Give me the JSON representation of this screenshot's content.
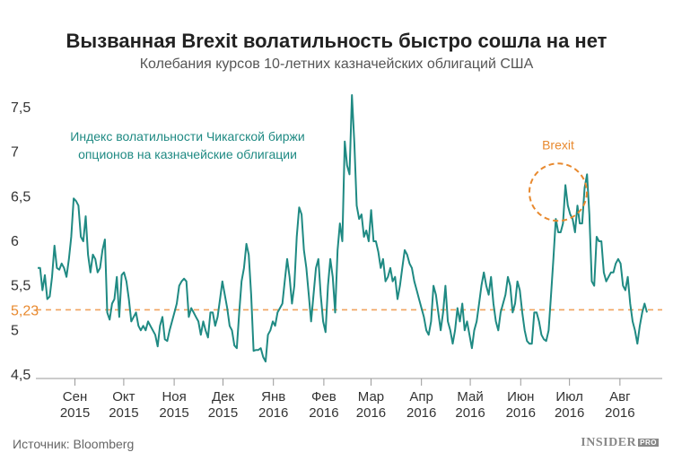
{
  "header": {
    "title": "Вызванная Brexit волатильность быстро сошла на нет",
    "subtitle": "Колебания курсов 10-летних казначейских облигаций США"
  },
  "footer": {
    "source": "Источник: Bloomberg",
    "brand": "INSIDER",
    "brand_suffix": "PRO"
  },
  "colors": {
    "line": "#1f8a83",
    "reference": "#f0a35e",
    "brexit": "#e8892e",
    "axis": "#999999",
    "text": "#333333"
  },
  "chart_data": {
    "type": "line",
    "title": "Вызванная Brexit волатильность быстро сошла на нет",
    "subtitle": "Колебания курсов 10-летних казначейских облигаций США",
    "series": [
      {
        "name": "Индекс волатильности Чикагской биржи опционов на казначейские облигации",
        "values": [
          5.7,
          5.7,
          5.45,
          5.62,
          5.35,
          5.38,
          5.6,
          5.95,
          5.7,
          5.68,
          5.75,
          5.7,
          5.6,
          5.8,
          6.05,
          6.48,
          6.45,
          6.4,
          6.05,
          6.0,
          6.28,
          5.85,
          5.65,
          5.85,
          5.8,
          5.65,
          5.7,
          5.9,
          6.02,
          5.2,
          5.12,
          5.3,
          5.35,
          5.6,
          5.15,
          5.62,
          5.65,
          5.55,
          5.35,
          5.1,
          5.15,
          5.2,
          5.05,
          5.0,
          5.05,
          5.0,
          5.1,
          5.05,
          5.0,
          4.95,
          4.82,
          5.05,
          5.15,
          4.9,
          4.88,
          5.0,
          5.1,
          5.2,
          5.3,
          5.5,
          5.55,
          5.58,
          5.55,
          5.15,
          5.25,
          5.2,
          5.15,
          5.1,
          4.95,
          5.1,
          5.0,
          4.92,
          5.2,
          5.2,
          5.05,
          5.15,
          5.35,
          5.55,
          5.4,
          5.25,
          5.05,
          5.0,
          4.83,
          4.8,
          5.2,
          5.55,
          5.7,
          5.97,
          5.85,
          5.4,
          4.77,
          4.78,
          4.78,
          4.8,
          4.7,
          4.65,
          4.95,
          5.0,
          5.1,
          5.05,
          5.2,
          5.25,
          5.3,
          5.55,
          5.8,
          5.6,
          5.3,
          5.5,
          6.05,
          6.38,
          6.3,
          5.9,
          5.7,
          5.4,
          5.1,
          5.4,
          5.7,
          5.8,
          5.4,
          5.1,
          4.98,
          5.5,
          5.8,
          5.6,
          5.2,
          5.9,
          6.2,
          6.0,
          7.12,
          6.85,
          6.75,
          7.64,
          7.1,
          6.4,
          6.25,
          6.3,
          6.05,
          6.12,
          6.0,
          6.35,
          6.0,
          6.0,
          5.88,
          5.7,
          5.8,
          5.55,
          5.6,
          5.7,
          5.55,
          5.6,
          5.35,
          5.5,
          5.7,
          5.9,
          5.85,
          5.75,
          5.7,
          5.55,
          5.45,
          5.35,
          5.25,
          5.15,
          5.0,
          4.95,
          5.1,
          5.5,
          5.4,
          5.2,
          5.0,
          5.2,
          5.5,
          5.1,
          5.0,
          4.85,
          5.0,
          5.25,
          5.1,
          5.3,
          5.0,
          5.1,
          4.95,
          4.8,
          5.0,
          5.1,
          5.3,
          5.5,
          5.65,
          5.5,
          5.4,
          5.6,
          5.3,
          5.1,
          5.0,
          5.2,
          5.3,
          5.4,
          5.6,
          5.5,
          5.2,
          5.3,
          5.55,
          5.45,
          5.2,
          5.0,
          4.88,
          4.85,
          4.85,
          5.2,
          5.2,
          5.1,
          4.95,
          4.9,
          4.88,
          5.0,
          5.4,
          5.8,
          6.25,
          6.1,
          6.1,
          6.2,
          6.63,
          6.4,
          6.3,
          6.25,
          6.1,
          6.4,
          6.2,
          6.2,
          6.6,
          6.75,
          6.3,
          5.55,
          5.5,
          6.05,
          6.0,
          6.0,
          5.65,
          5.55,
          5.6,
          5.65,
          5.65,
          5.75,
          5.8,
          5.75,
          5.5,
          5.45,
          5.6,
          5.3,
          5.1,
          5.0,
          4.85,
          5.05,
          5.2,
          5.3,
          5.2
        ]
      },
      {
        "name": "5,23",
        "type": "reference-line",
        "values": [
          5.23
        ]
      }
    ],
    "x": {
      "range": [
        "2015-08-08",
        "2016-08-27"
      ],
      "ticks": [
        {
          "month": "Сен",
          "year": "2015",
          "date": "2015-09-01"
        },
        {
          "month": "Окт",
          "year": "2015",
          "date": "2015-10-01"
        },
        {
          "month": "Ноя",
          "year": "2015",
          "date": "2015-11-01"
        },
        {
          "month": "Дек",
          "year": "2015",
          "date": "2015-12-01"
        },
        {
          "month": "Янв",
          "year": "2016",
          "date": "2016-01-01"
        },
        {
          "month": "Фев",
          "year": "2016",
          "date": "2016-02-01"
        },
        {
          "month": "Мар",
          "year": "2016",
          "date": "2016-03-01"
        },
        {
          "month": "Апр",
          "year": "2016",
          "date": "2016-04-01"
        },
        {
          "month": "Май",
          "year": "2016",
          "date": "2016-05-01"
        },
        {
          "month": "Июн",
          "year": "2016",
          "date": "2016-06-01"
        },
        {
          "month": "Июл",
          "year": "2016",
          "date": "2016-07-01"
        },
        {
          "month": "Авг",
          "year": "2016",
          "date": "2016-08-01"
        }
      ]
    },
    "y": {
      "range": [
        4.5,
        7.65
      ],
      "ticks": [
        {
          "value": 4.5,
          "label": "4,5"
        },
        {
          "value": 5.0,
          "label": "5"
        },
        {
          "value": 5.5,
          "label": "5,5"
        },
        {
          "value": 6.0,
          "label": "6"
        },
        {
          "value": 6.5,
          "label": "6,5"
        },
        {
          "value": 7.0,
          "label": "7"
        },
        {
          "value": 7.5,
          "label": "7,5"
        }
      ]
    },
    "reference_line": {
      "value": 5.23,
      "label": "5,23"
    },
    "annotations": {
      "series_label_lines": [
        "Индекс волатильности Чикагской биржи",
        "опционов на казначейские облигации"
      ],
      "brexit": {
        "label": "Brexit",
        "date": "2016-06-24",
        "value": 6.55
      }
    },
    "grid": false,
    "legend": "none"
  }
}
